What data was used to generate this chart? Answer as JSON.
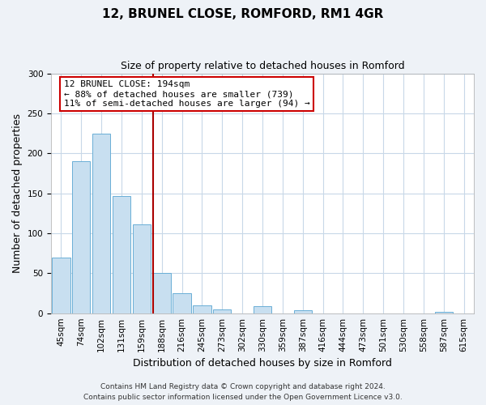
{
  "title": "12, BRUNEL CLOSE, ROMFORD, RM1 4GR",
  "subtitle": "Size of property relative to detached houses in Romford",
  "xlabel": "Distribution of detached houses by size in Romford",
  "ylabel": "Number of detached properties",
  "bin_labels": [
    "45sqm",
    "74sqm",
    "102sqm",
    "131sqm",
    "159sqm",
    "188sqm",
    "216sqm",
    "245sqm",
    "273sqm",
    "302sqm",
    "330sqm",
    "359sqm",
    "387sqm",
    "416sqm",
    "444sqm",
    "473sqm",
    "501sqm",
    "530sqm",
    "558sqm",
    "587sqm",
    "615sqm"
  ],
  "bar_values": [
    70,
    190,
    225,
    147,
    111,
    50,
    25,
    10,
    5,
    0,
    9,
    0,
    4,
    0,
    0,
    0,
    0,
    0,
    0,
    2,
    0
  ],
  "bar_color": "#c8dff0",
  "bar_edge_color": "#6aafd6",
  "vline_color": "#aa0000",
  "vline_x_index": 5,
  "ylim": [
    0,
    300
  ],
  "yticks": [
    0,
    50,
    100,
    150,
    200,
    250,
    300
  ],
  "annotation_lines": [
    "12 BRUNEL CLOSE: 194sqm",
    "← 88% of detached houses are smaller (739)",
    "11% of semi-detached houses are larger (94) →"
  ],
  "annotation_box_color": "#cc0000",
  "footer_line1": "Contains HM Land Registry data © Crown copyright and database right 2024.",
  "footer_line2": "Contains public sector information licensed under the Open Government Licence v3.0.",
  "background_color": "#eef2f7",
  "plot_background": "#ffffff",
  "grid_color": "#c8d8e8",
  "title_fontsize": 11,
  "subtitle_fontsize": 9,
  "ylabel_fontsize": 9,
  "xlabel_fontsize": 9,
  "tick_fontsize": 7.5,
  "footer_fontsize": 6.5,
  "ann_fontsize": 8
}
